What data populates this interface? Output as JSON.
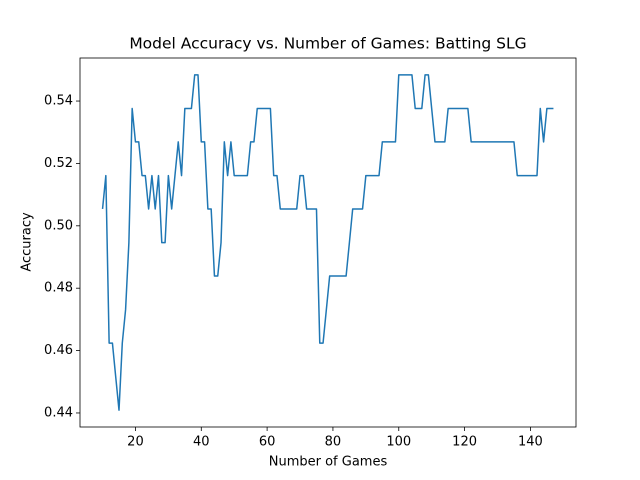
{
  "chart_data": {
    "type": "line",
    "title": "Model Accuracy vs. Number of Games: Batting SLG",
    "x_label": "Number of Games",
    "y_label": "Accuracy",
    "x": [
      10,
      11,
      12,
      13,
      14,
      15,
      16,
      17,
      18,
      19,
      20,
      21,
      22,
      23,
      24,
      25,
      26,
      27,
      28,
      29,
      30,
      31,
      32,
      33,
      34,
      35,
      36,
      37,
      38,
      39,
      40,
      41,
      42,
      43,
      44,
      45,
      46,
      47,
      48,
      49,
      50,
      51,
      52,
      53,
      54,
      55,
      56,
      57,
      58,
      59,
      60,
      61,
      62,
      63,
      64,
      65,
      66,
      67,
      68,
      69,
      70,
      71,
      72,
      73,
      74,
      75,
      76,
      77,
      78,
      79,
      80,
      81,
      82,
      83,
      84,
      85,
      86,
      87,
      88,
      89,
      90,
      91,
      92,
      93,
      94,
      95,
      96,
      97,
      98,
      99,
      100,
      101,
      102,
      103,
      104,
      105,
      106,
      107,
      108,
      109,
      110,
      111,
      112,
      113,
      114,
      115,
      116,
      117,
      118,
      119,
      120,
      121,
      122,
      123,
      124,
      125,
      126,
      127,
      128,
      129,
      130,
      131,
      132,
      133,
      134,
      135,
      136,
      137,
      138,
      139,
      140,
      141,
      142,
      143,
      144,
      145,
      146,
      147
    ],
    "series": [
      {
        "name": "Accuracy",
        "color": "#1f77b4",
        "values": [
          0.5054,
          0.5161,
          0.4624,
          0.4624,
          0.4516,
          0.4409,
          0.4624,
          0.4731,
          0.4946,
          0.5376,
          0.5269,
          0.5269,
          0.5161,
          0.5161,
          0.5054,
          0.5161,
          0.5054,
          0.5161,
          0.4946,
          0.4946,
          0.5161,
          0.5054,
          0.5161,
          0.5269,
          0.5161,
          0.5376,
          0.5376,
          0.5376,
          0.5484,
          0.5484,
          0.5269,
          0.5269,
          0.5054,
          0.5054,
          0.4839,
          0.4839,
          0.4946,
          0.5269,
          0.5161,
          0.5269,
          0.5161,
          0.5161,
          0.5161,
          0.5161,
          0.5161,
          0.5269,
          0.5269,
          0.5376,
          0.5376,
          0.5376,
          0.5376,
          0.5376,
          0.5161,
          0.5161,
          0.5054,
          0.5054,
          0.5054,
          0.5054,
          0.5054,
          0.5054,
          0.5161,
          0.5161,
          0.5054,
          0.5054,
          0.5054,
          0.5054,
          0.4624,
          0.4624,
          0.4731,
          0.4839,
          0.4839,
          0.4839,
          0.4839,
          0.4839,
          0.4839,
          0.4946,
          0.5054,
          0.5054,
          0.5054,
          0.5054,
          0.5161,
          0.5161,
          0.5161,
          0.5161,
          0.5161,
          0.5269,
          0.5269,
          0.5269,
          0.5269,
          0.5269,
          0.5484,
          0.5484,
          0.5484,
          0.5484,
          0.5484,
          0.5376,
          0.5376,
          0.5376,
          0.5484,
          0.5484,
          0.5376,
          0.5269,
          0.5269,
          0.5269,
          0.5269,
          0.5376,
          0.5376,
          0.5376,
          0.5376,
          0.5376,
          0.5376,
          0.5376,
          0.5269,
          0.5269,
          0.5269,
          0.5269,
          0.5269,
          0.5269,
          0.5269,
          0.5269,
          0.5269,
          0.5269,
          0.5269,
          0.5269,
          0.5269,
          0.5269,
          0.5161,
          0.5161,
          0.5161,
          0.5161,
          0.5161,
          0.5161,
          0.5161,
          0.5376,
          0.5269,
          0.5376,
          0.5376,
          0.5376
        ]
      }
    ],
    "xlim": [
      3.15,
      153.85
    ],
    "ylim": [
      0.4355,
      0.5538
    ],
    "xticks": [
      20,
      40,
      60,
      80,
      100,
      120,
      140
    ],
    "yticks": [
      0.44,
      0.46,
      0.48,
      {
        "value": 0.5,
        "label": "0.50"
      },
      0.52,
      0.54
    ],
    "grid": false
  }
}
